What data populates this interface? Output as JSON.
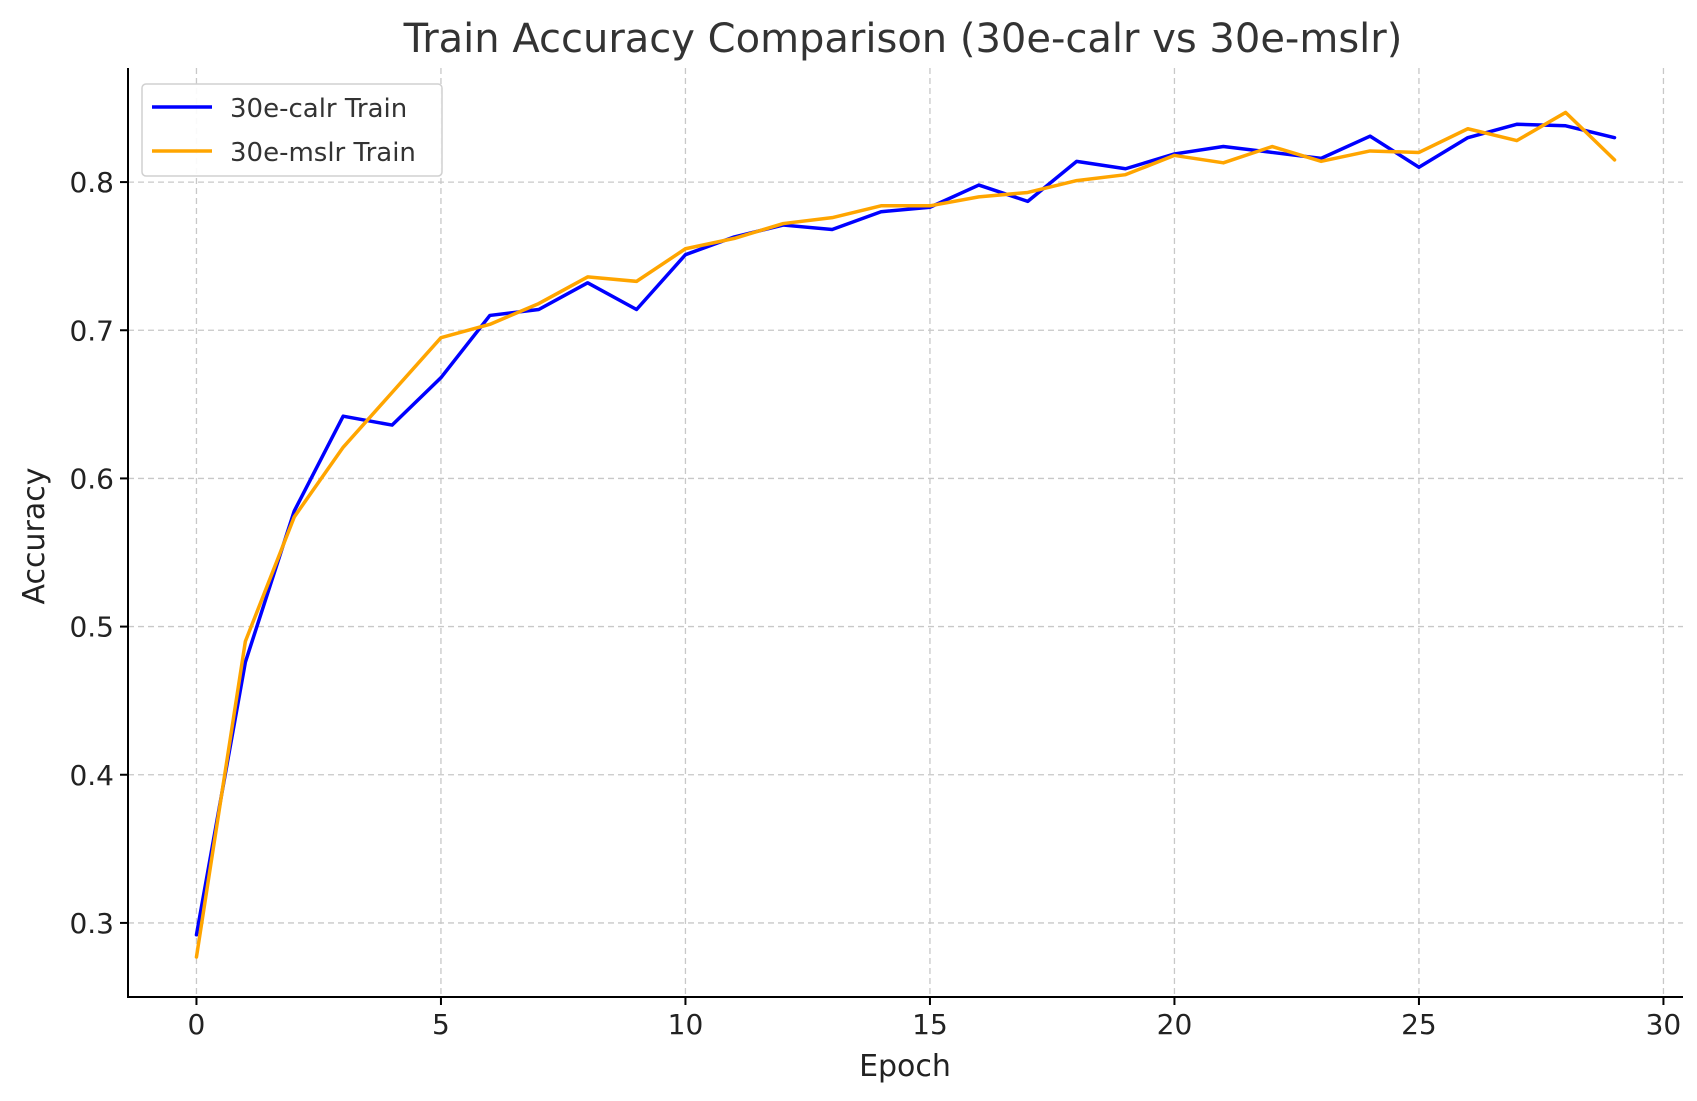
{
  "chart_data": {
    "type": "line",
    "title": "Train Accuracy Comparison (30e-calr vs 30e-mslr)",
    "xlabel": "Epoch",
    "ylabel": "Accuracy",
    "xlim": [
      -1.4,
      30.4
    ],
    "ylim": [
      0.25,
      0.877
    ],
    "xticks": [
      0,
      5,
      10,
      15,
      20,
      25,
      30
    ],
    "yticks": [
      0.3,
      0.4,
      0.5,
      0.6,
      0.7,
      0.8
    ],
    "xtick_labels": [
      "0",
      "5",
      "10",
      "15",
      "20",
      "25",
      "30"
    ],
    "ytick_labels": [
      "0.3",
      "0.4",
      "0.5",
      "0.6",
      "0.7",
      "0.8"
    ],
    "grid": true,
    "legend_position": "top-left",
    "x": [
      0,
      1,
      2,
      3,
      4,
      5,
      6,
      7,
      8,
      9,
      10,
      11,
      12,
      13,
      14,
      15,
      16,
      17,
      18,
      19,
      20,
      21,
      22,
      23,
      24,
      25,
      26,
      27,
      28,
      29
    ],
    "series": [
      {
        "name": "30e-calr Train",
        "color": "#0000ff",
        "values": [
          0.292,
          0.476,
          0.578,
          0.642,
          0.636,
          0.668,
          0.71,
          0.714,
          0.732,
          0.714,
          0.751,
          0.763,
          0.771,
          0.768,
          0.78,
          0.783,
          0.798,
          0.787,
          0.814,
          0.809,
          0.819,
          0.824,
          0.82,
          0.816,
          0.831,
          0.81,
          0.83,
          0.839,
          0.838,
          0.83
        ]
      },
      {
        "name": "30e-mslr Train",
        "color": "#ffa500",
        "values": [
          0.277,
          0.49,
          0.574,
          0.621,
          0.658,
          0.695,
          0.704,
          0.718,
          0.736,
          0.733,
          0.755,
          0.762,
          0.772,
          0.776,
          0.784,
          0.784,
          0.79,
          0.793,
          0.801,
          0.805,
          0.818,
          0.813,
          0.824,
          0.814,
          0.821,
          0.82,
          0.836,
          0.828,
          0.847,
          0.815
        ]
      }
    ]
  }
}
